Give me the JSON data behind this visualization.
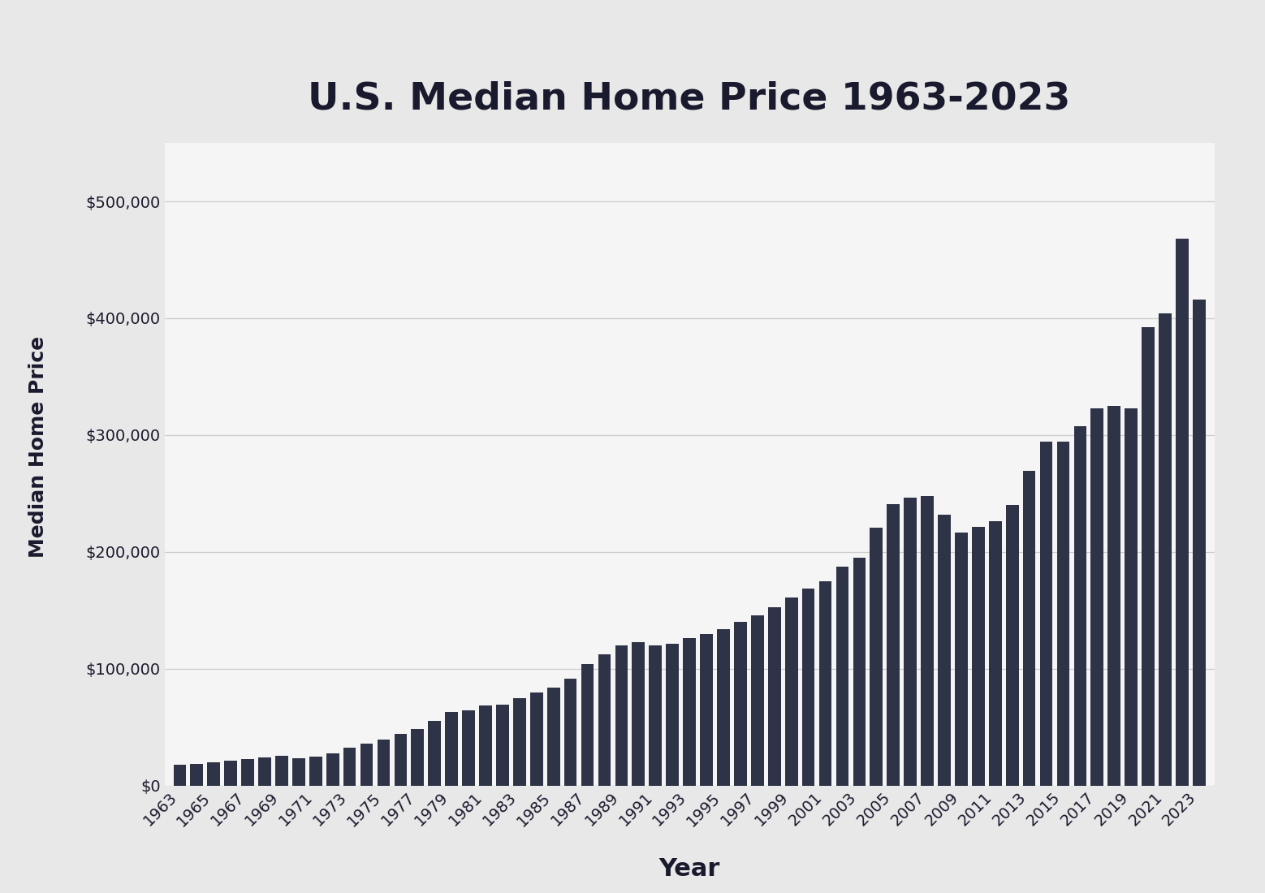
{
  "title": "U.S. Median Home Price 1963-2023",
  "xlabel": "Year",
  "ylabel": "Median Home Price",
  "outer_background_color": "#e8e8e8",
  "plot_background_color": "#f5f5f5",
  "bar_color": "#2e3347",
  "years": [
    1963,
    1964,
    1965,
    1966,
    1967,
    1968,
    1969,
    1970,
    1971,
    1972,
    1973,
    1974,
    1975,
    1976,
    1977,
    1978,
    1979,
    1980,
    1981,
    1982,
    1983,
    1984,
    1985,
    1986,
    1987,
    1988,
    1989,
    1990,
    1991,
    1992,
    1993,
    1994,
    1995,
    1996,
    1997,
    1998,
    1999,
    2000,
    2001,
    2002,
    2003,
    2004,
    2005,
    2006,
    2007,
    2008,
    2009,
    2010,
    2011,
    2012,
    2013,
    2014,
    2015,
    2016,
    2017,
    2018,
    2019,
    2020,
    2021,
    2022,
    2023
  ],
  "prices": [
    18000,
    18900,
    20000,
    21400,
    22700,
    24400,
    25600,
    23400,
    25200,
    27600,
    32500,
    35900,
    39300,
    44200,
    48800,
    55700,
    62900,
    64600,
    68900,
    69300,
    75300,
    79900,
    84300,
    92000,
    104500,
    112500,
    120000,
    122900,
    120000,
    121500,
    126500,
    130000,
    133900,
    140000,
    145700,
    152500,
    161000,
    169000,
    175200,
    187700,
    195000,
    221000,
    240900,
    246500,
    247900,
    232100,
    216700,
    221800,
    226700,
    240000,
    269500,
    294200,
    294200,
    307800,
    323100,
    325000,
    322600,
    392700,
    404200,
    468000,
    416100
  ],
  "title_fontsize": 34,
  "xlabel_fontsize": 22,
  "ylabel_fontsize": 18,
  "tick_fontsize": 14,
  "title_color": "#1a1a2e",
  "label_color": "#1a1a2e",
  "grid_color": "#cccccc",
  "ylim": [
    0,
    550000
  ],
  "ytick_step": 100000
}
